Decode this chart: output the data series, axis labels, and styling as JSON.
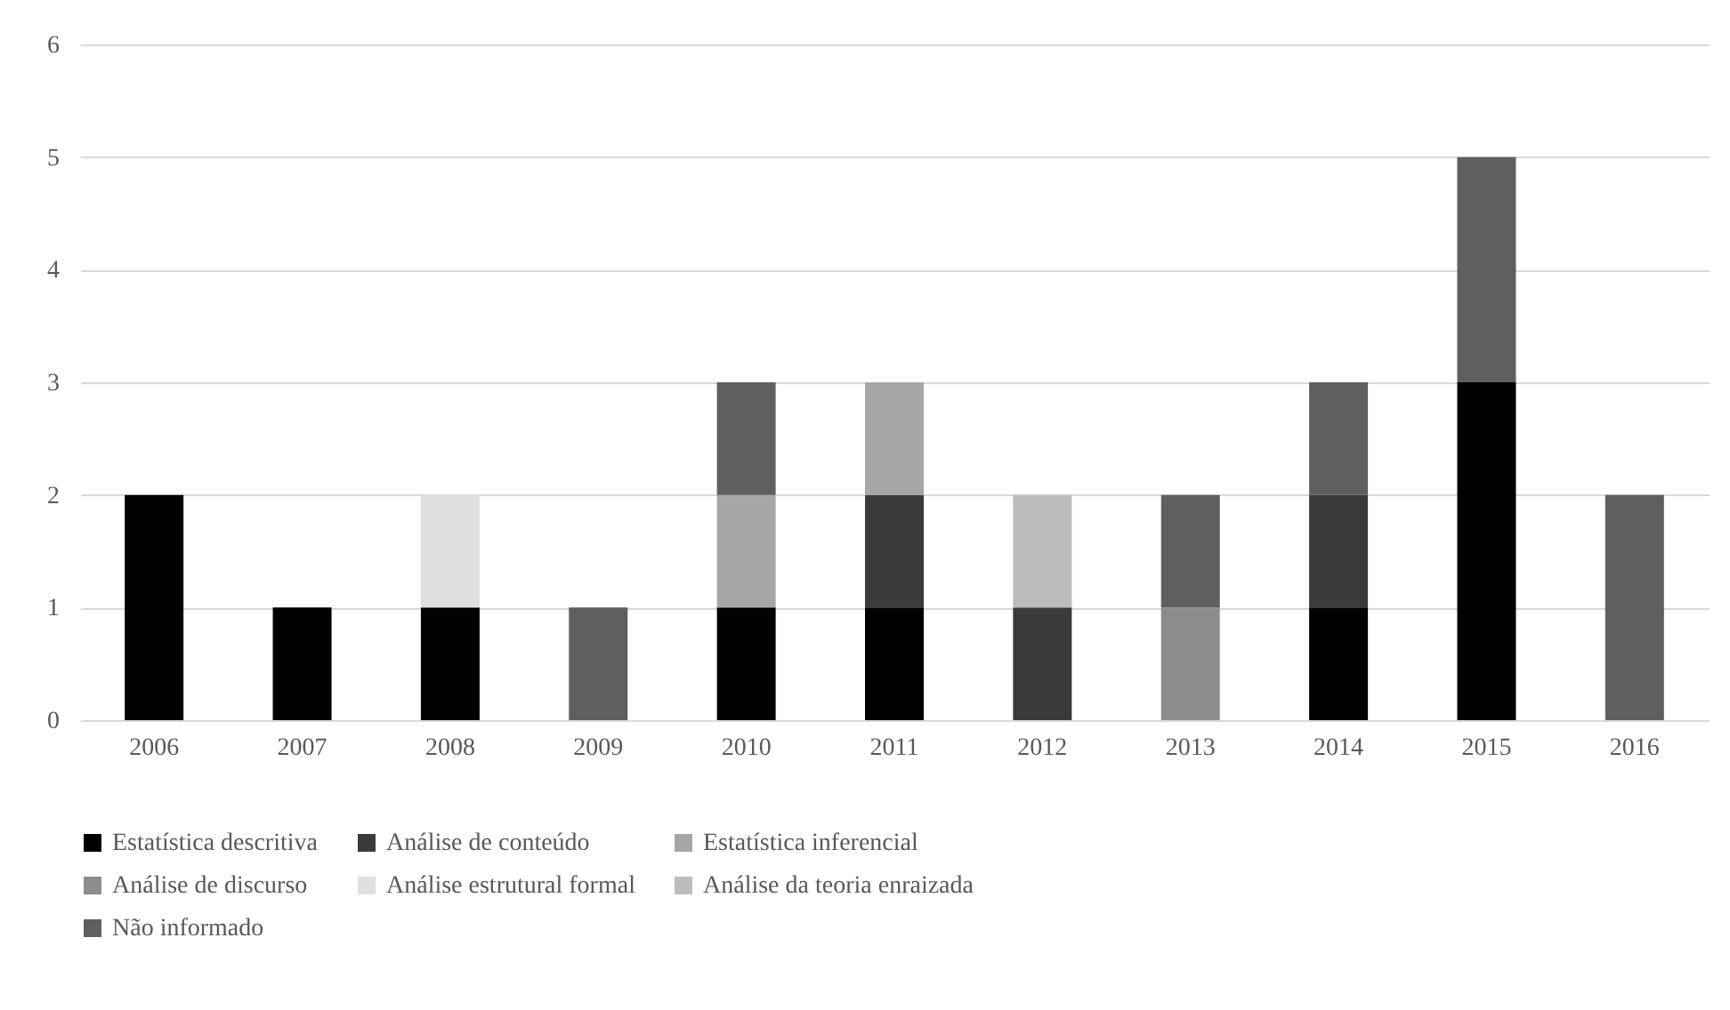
{
  "chart_data": {
    "type": "bar",
    "stacked": true,
    "categories": [
      "2006",
      "2007",
      "2008",
      "2009",
      "2010",
      "2011",
      "2012",
      "2013",
      "2014",
      "2015",
      "2016"
    ],
    "series": [
      {
        "name": "Estatística descritiva",
        "color": "#000000",
        "values": [
          2,
          1,
          1,
          null,
          1,
          1,
          null,
          null,
          1,
          3,
          null
        ]
      },
      {
        "name": "Análise de conteúdo",
        "color": "#3a3a3a",
        "values": [
          null,
          null,
          null,
          null,
          null,
          1,
          1,
          null,
          1,
          null,
          null
        ]
      },
      {
        "name": "Estatística inferencial",
        "color": "#a6a6a6",
        "values": [
          null,
          null,
          null,
          null,
          1,
          1,
          null,
          null,
          null,
          null,
          null
        ]
      },
      {
        "name": "Análise de discurso",
        "color": "#8c8c8c",
        "values": [
          null,
          null,
          null,
          null,
          null,
          null,
          null,
          1,
          null,
          null,
          null
        ]
      },
      {
        "name": "Análise estrutural formal",
        "color": "#e0e0e0",
        "values": [
          null,
          null,
          1,
          null,
          null,
          null,
          null,
          null,
          null,
          null,
          null
        ]
      },
      {
        "name": "Análise da teoria enraizada",
        "color": "#bdbdbd",
        "values": [
          null,
          null,
          null,
          null,
          null,
          null,
          1,
          null,
          null,
          null,
          null
        ]
      },
      {
        "name": "Não informado",
        "color": "#5f5f5f",
        "values": [
          null,
          null,
          null,
          1,
          1,
          null,
          null,
          1,
          1,
          2,
          2
        ]
      }
    ],
    "ylim": [
      0,
      6
    ],
    "yticks": [
      0,
      1,
      2,
      3,
      4,
      5,
      6
    ],
    "grid": "y",
    "legend": "bottom"
  }
}
